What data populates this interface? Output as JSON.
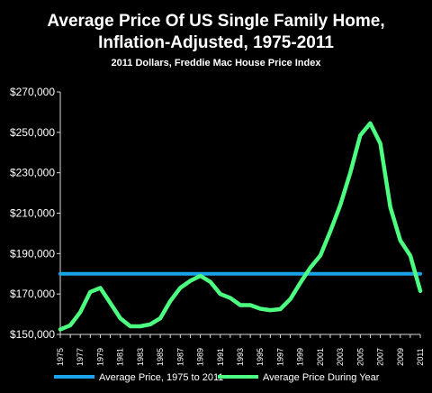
{
  "chart_data": {
    "type": "line",
    "title_line1": "Average Price Of US Single Family Home,",
    "title_line2": "Inflation-Adjusted, 1975-2011",
    "subtitle": "2011 Dollars, Freddie Mac House Price Index",
    "xlabel": "",
    "ylabel": "",
    "ylim": [
      150000,
      270000
    ],
    "y_ticks": [
      150000,
      170000,
      190000,
      210000,
      230000,
      250000,
      270000
    ],
    "y_tick_labels": [
      "$150,000",
      "$170,000",
      "$190,000",
      "$210,000",
      "$230,000",
      "$250,000",
      "$270,000"
    ],
    "x_ticks": [
      1975,
      1977,
      1979,
      1981,
      1983,
      1985,
      1987,
      1989,
      1991,
      1993,
      1995,
      1997,
      1999,
      2001,
      2003,
      2005,
      2007,
      2009,
      2011
    ],
    "x_tick_labels": [
      "1975",
      "1977",
      "1979",
      "1981",
      "1983",
      "1985",
      "1987",
      "1989",
      "1991",
      "1993",
      "1995",
      "1997",
      "1999",
      "2001",
      "2003",
      "2005",
      "2007",
      "2009",
      "2011"
    ],
    "grid": false,
    "legend_position": "bottom",
    "series": [
      {
        "name": "Average Price, 1975 to 2011",
        "color": "#1aa3e8",
        "x": [
          1975,
          2011
        ],
        "values": [
          180000,
          180000
        ]
      },
      {
        "name": "Average Price During Year",
        "color": "#4dff80",
        "x": [
          1975,
          1976,
          1977,
          1978,
          1979,
          1980,
          1981,
          1982,
          1983,
          1984,
          1985,
          1986,
          1987,
          1988,
          1989,
          1990,
          1991,
          1992,
          1993,
          1994,
          1995,
          1996,
          1997,
          1998,
          1999,
          2000,
          2001,
          2002,
          2003,
          2004,
          2005,
          2006,
          2007,
          2008,
          2009,
          2010,
          2011
        ],
        "values": [
          152500,
          154500,
          161000,
          171000,
          173000,
          165500,
          158000,
          154000,
          154000,
          155000,
          158000,
          166500,
          173000,
          176500,
          179000,
          176000,
          170000,
          168000,
          164500,
          164500,
          162700,
          162000,
          162500,
          167500,
          175500,
          183000,
          189000,
          201000,
          214000,
          230000,
          248500,
          254500,
          244500,
          213000,
          196500,
          189000,
          171500
        ]
      }
    ]
  }
}
